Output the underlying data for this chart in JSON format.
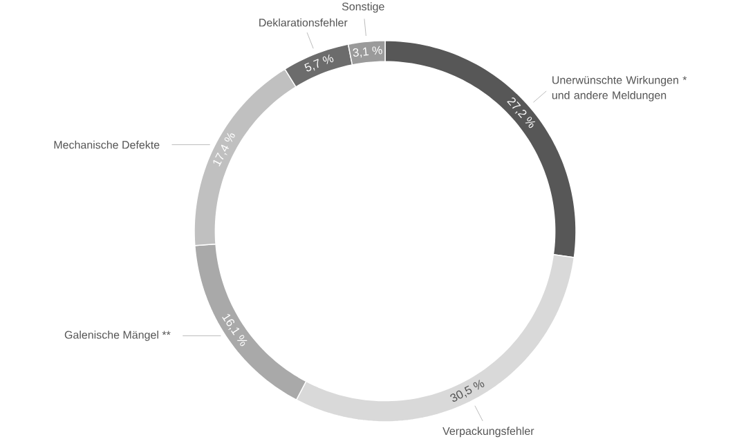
{
  "chart_data": {
    "type": "donut",
    "categories": [
      "Unerwünschte Wirkungen * und andere Meldungen",
      "Verpackungsfehler",
      "Galenische Mängel **",
      "Mechanische Defekte",
      "Deklarationsfehler",
      "Sonstige"
    ],
    "values": [
      27.2,
      30.5,
      16.1,
      17.4,
      5.7,
      3.1
    ],
    "value_labels": [
      "27,2 %",
      "30,5 %",
      "16,1 %",
      "17,4 %",
      "5,7 %",
      "3,1 %"
    ],
    "colors": [
      "#575757",
      "#d9d9d9",
      "#a9a9a9",
      "#c0c0c0",
      "#6c6c6c",
      "#9a9a9a"
    ]
  }
}
